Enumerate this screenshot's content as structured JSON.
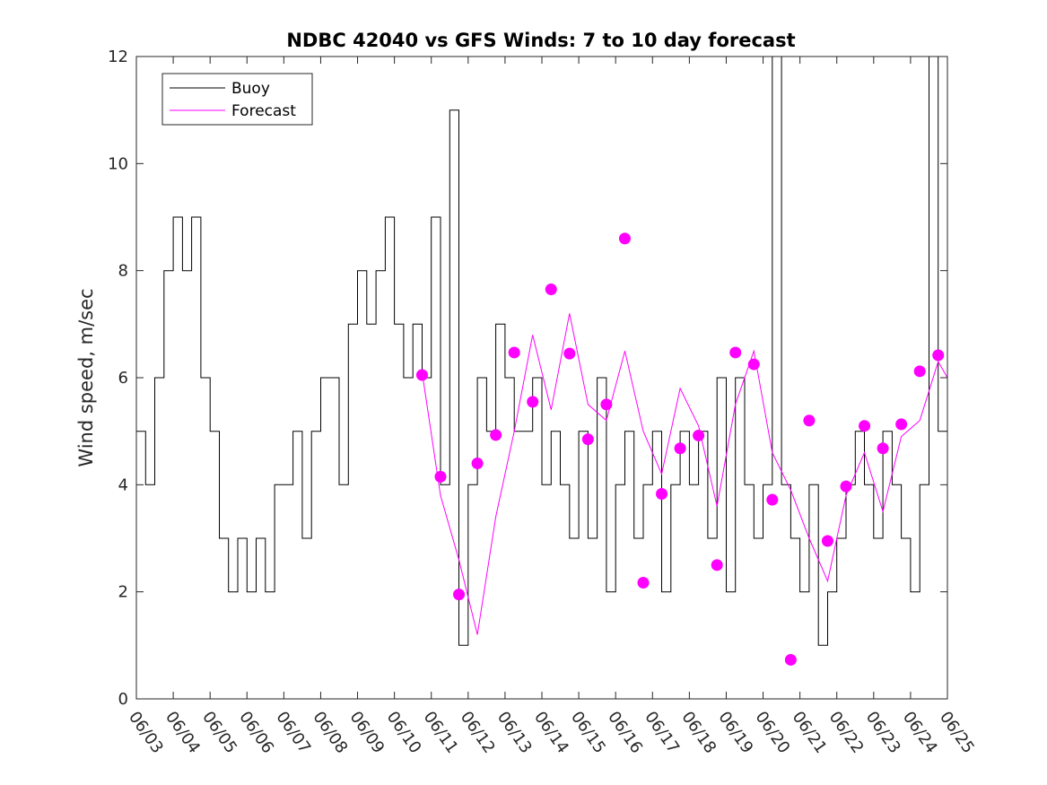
{
  "chart_data": {
    "type": "line",
    "title": "NDBC 42040 vs GFS Winds: 7 to 10 day forecast",
    "xlabel": "",
    "ylabel": "Wind speed, m/sec",
    "xlim": [
      "06/03",
      "06/25"
    ],
    "ylim": [
      0,
      12
    ],
    "yticks": [
      0,
      2,
      4,
      6,
      8,
      10,
      12
    ],
    "xtick_labels": [
      "06/03",
      "06/04",
      "06/05",
      "06/06",
      "06/07",
      "06/08",
      "06/09",
      "06/10",
      "06/11",
      "06/12",
      "06/13",
      "06/14",
      "06/15",
      "06/16",
      "06/17",
      "06/18",
      "06/19",
      "06/20",
      "06/21",
      "06/22",
      "06/23",
      "06/24",
      "06/25"
    ],
    "grid": false,
    "legend": {
      "position": "top-left",
      "entries": [
        "Buoy",
        "Forecast"
      ]
    },
    "colors": {
      "buoy": "#000000",
      "forecast": "#ff00ff"
    },
    "series": [
      {
        "name": "Buoy",
        "style": "line",
        "x": [
          "06/03 00:00",
          "06/03 06:00",
          "06/03 12:00",
          "06/03 18:00",
          "06/04 00:00",
          "06/04 06:00",
          "06/04 12:00",
          "06/04 18:00",
          "06/05 00:00",
          "06/05 06:00",
          "06/05 12:00",
          "06/05 18:00",
          "06/06 00:00",
          "06/06 06:00",
          "06/06 12:00",
          "06/06 18:00",
          "06/07 00:00",
          "06/07 06:00",
          "06/07 12:00",
          "06/07 18:00",
          "06/08 00:00",
          "06/08 06:00",
          "06/08 12:00",
          "06/08 18:00",
          "06/09 00:00",
          "06/09 06:00",
          "06/09 12:00",
          "06/09 18:00",
          "06/10 00:00",
          "06/10 06:00",
          "06/10 12:00",
          "06/10 18:00",
          "06/11 00:00",
          "06/11 06:00",
          "06/11 12:00",
          "06/11 18:00",
          "06/12 00:00",
          "06/12 06:00",
          "06/12 12:00",
          "06/12 18:00",
          "06/13 00:00",
          "06/13 06:00",
          "06/13 12:00",
          "06/13 18:00",
          "06/14 00:00",
          "06/14 06:00",
          "06/14 12:00",
          "06/14 18:00",
          "06/15 00:00",
          "06/15 06:00",
          "06/15 12:00",
          "06/15 18:00",
          "06/16 00:00",
          "06/16 06:00",
          "06/16 12:00",
          "06/16 18:00",
          "06/17 00:00",
          "06/17 06:00",
          "06/17 12:00",
          "06/17 18:00",
          "06/18 00:00",
          "06/18 06:00",
          "06/18 12:00",
          "06/18 18:00",
          "06/19 00:00",
          "06/19 06:00",
          "06/19 12:00",
          "06/19 18:00",
          "06/20 00:00",
          "06/20 06:00",
          "06/20 12:00",
          "06/20 18:00",
          "06/21 00:00",
          "06/21 06:00",
          "06/21 12:00",
          "06/21 18:00",
          "06/22 00:00",
          "06/22 06:00",
          "06/22 12:00",
          "06/22 18:00",
          "06/23 00:00",
          "06/23 06:00",
          "06/23 12:00",
          "06/23 18:00",
          "06/24 00:00",
          "06/24 06:00",
          "06/24 12:00",
          "06/24 18:00",
          "06/25 00:00"
        ],
        "values": [
          5,
          4,
          6,
          8,
          9,
          8,
          9,
          6,
          5,
          3,
          2,
          3,
          2,
          3,
          2,
          4,
          4,
          5,
          3,
          5,
          6,
          6,
          4,
          7,
          8,
          7,
          8,
          9,
          7,
          6,
          7,
          6,
          9,
          4,
          11,
          1,
          4,
          6,
          5,
          7,
          6,
          5,
          5,
          6,
          4,
          5,
          4,
          3,
          5,
          3,
          6,
          2,
          4,
          5,
          3,
          4,
          5,
          2,
          4,
          5,
          4,
          5,
          3,
          6,
          2,
          6,
          4,
          3,
          4,
          12,
          4,
          3,
          2,
          4,
          1,
          2,
          3,
          4,
          5,
          4,
          3,
          5,
          4,
          3,
          2,
          4,
          12,
          5,
          6
        ]
      },
      {
        "name": "Forecast",
        "style": "line",
        "x": [
          "06/10 18:00",
          "06/11 06:00",
          "06/11 18:00",
          "06/12 06:00",
          "06/12 18:00",
          "06/13 06:00",
          "06/13 18:00",
          "06/14 06:00",
          "06/14 18:00",
          "06/15 06:00",
          "06/15 18:00",
          "06/16 06:00",
          "06/16 18:00",
          "06/17 06:00",
          "06/17 18:00",
          "06/18 06:00",
          "06/18 18:00",
          "06/19 06:00",
          "06/19 18:00",
          "06/20 06:00",
          "06/20 18:00",
          "06/21 06:00",
          "06/21 18:00",
          "06/22 06:00",
          "06/22 18:00",
          "06/23 06:00",
          "06/23 18:00",
          "06/24 06:00",
          "06/24 18:00",
          "06/25 00:00"
        ],
        "values": [
          6.1,
          3.8,
          2.6,
          1.2,
          3.4,
          5.0,
          6.8,
          5.4,
          7.2,
          5.5,
          5.2,
          6.5,
          5.0,
          4.2,
          5.8,
          5.1,
          3.6,
          5.5,
          6.5,
          4.6,
          3.9,
          3.0,
          2.2,
          3.8,
          4.6,
          3.5,
          4.9,
          5.2,
          6.3,
          6.0
        ]
      },
      {
        "name": "Forecast",
        "style": "markers",
        "x": [
          "06/10 18:00",
          "06/11 06:00",
          "06/11 18:00",
          "06/12 06:00",
          "06/12 18:00",
          "06/13 06:00",
          "06/13 18:00",
          "06/14 06:00",
          "06/14 18:00",
          "06/15 06:00",
          "06/15 18:00",
          "06/16 06:00",
          "06/16 18:00",
          "06/17 06:00",
          "06/17 18:00",
          "06/18 06:00",
          "06/18 18:00",
          "06/19 06:00",
          "06/19 18:00",
          "06/20 06:00",
          "06/20 18:00",
          "06/21 06:00",
          "06/21 18:00",
          "06/22 06:00",
          "06/22 18:00",
          "06/23 06:00",
          "06/23 18:00",
          "06/24 06:00",
          "06/24 18:00"
        ],
        "values": [
          6.05,
          4.15,
          1.95,
          4.4,
          4.93,
          6.47,
          5.55,
          7.65,
          6.45,
          4.85,
          5.5,
          8.6,
          2.17,
          3.83,
          4.68,
          4.92,
          2.5,
          6.47,
          6.25,
          3.72,
          0.73,
          5.2,
          2.95,
          3.97,
          5.1,
          4.68,
          5.13,
          6.12,
          6.42
        ]
      }
    ]
  }
}
